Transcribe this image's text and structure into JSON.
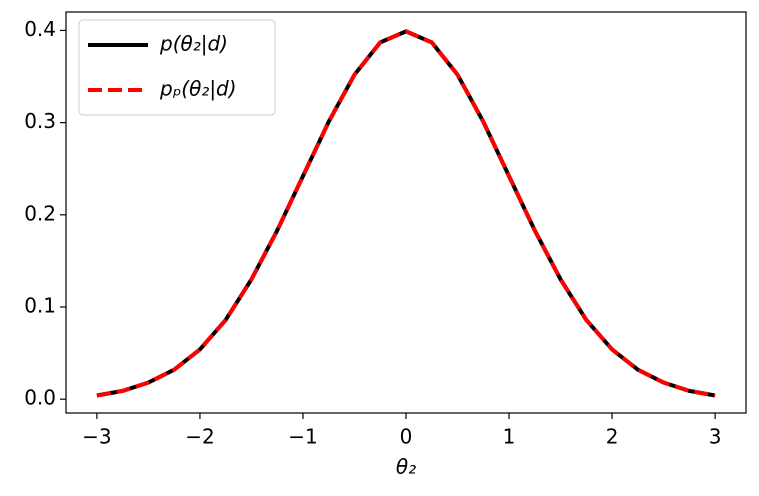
{
  "chart_data": {
    "type": "line",
    "x_label": "θ₂",
    "x": [
      -3,
      -2.75,
      -2.5,
      -2.25,
      -2,
      -1.75,
      -1.5,
      -1.25,
      -1,
      -0.75,
      -0.5,
      -0.25,
      0,
      0.25,
      0.5,
      0.75,
      1,
      1.25,
      1.5,
      1.75,
      2,
      2.25,
      2.5,
      2.75,
      3
    ],
    "series": [
      {
        "name": "p(θ₂|d)",
        "color": "#000000",
        "style": "solid",
        "values": [
          0.004,
          0.009,
          0.018,
          0.032,
          0.054,
          0.086,
          0.13,
          0.183,
          0.242,
          0.301,
          0.352,
          0.387,
          0.399,
          0.387,
          0.352,
          0.301,
          0.242,
          0.183,
          0.13,
          0.086,
          0.054,
          0.032,
          0.018,
          0.009,
          0.004
        ]
      },
      {
        "name": "pₚ(θ₂|d)",
        "color": "#ff0000",
        "style": "dashed",
        "values": [
          0.004,
          0.009,
          0.018,
          0.032,
          0.054,
          0.086,
          0.13,
          0.183,
          0.242,
          0.301,
          0.352,
          0.387,
          0.399,
          0.387,
          0.352,
          0.301,
          0.242,
          0.183,
          0.13,
          0.086,
          0.054,
          0.032,
          0.018,
          0.009,
          0.004
        ]
      }
    ],
    "xlim": [
      -3.3,
      3.3
    ],
    "ylim": [
      -0.015,
      0.42
    ],
    "xticks": [
      {
        "value": -3,
        "label": "−3"
      },
      {
        "value": -2,
        "label": "−2"
      },
      {
        "value": -1,
        "label": "−1"
      },
      0,
      1,
      2,
      3
    ],
    "yticks": [
      {
        "value": 0,
        "label": "0.0"
      },
      0.1,
      0.2,
      0.3,
      0.4
    ],
    "grid": false,
    "legend": "upper left"
  }
}
